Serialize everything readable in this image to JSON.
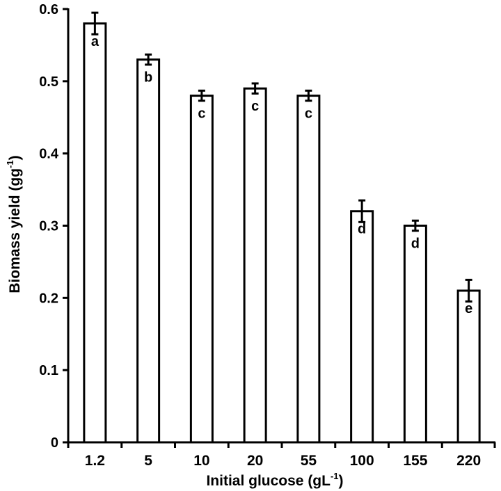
{
  "chart_data": {
    "type": "bar",
    "xlabel": "Initial glucose (gL",
    "xlabel_sup": "-1",
    "xlabel_tail": ")",
    "ylabel": "Biomass yield (gg",
    "ylabel_sup": "-1",
    "ylabel_tail": ")",
    "ylim": [
      0,
      0.6
    ],
    "yticks": [
      {
        "value": 0,
        "label": "0"
      },
      {
        "value": 0.1,
        "label": "0.1"
      },
      {
        "value": 0.2,
        "label": "0.2"
      },
      {
        "value": 0.3,
        "label": "0.3"
      },
      {
        "value": 0.4,
        "label": "0.4"
      },
      {
        "value": 0.5,
        "label": "0.5"
      },
      {
        "value": 0.6,
        "label": "0.6"
      }
    ],
    "categories": [
      "1.2",
      "5",
      "10",
      "20",
      "55",
      "100",
      "155",
      "220"
    ],
    "values": [
      0.58,
      0.53,
      0.48,
      0.49,
      0.48,
      0.32,
      0.3,
      0.21
    ],
    "errors": [
      0.015,
      0.007,
      0.007,
      0.007,
      0.007,
      0.015,
      0.007,
      0.015
    ],
    "significance": [
      "a",
      "b",
      "c",
      "c",
      "c",
      "d",
      "d",
      "e"
    ],
    "grid": false,
    "bar_fill": "#ffffff",
    "bar_stroke": "#000000"
  }
}
